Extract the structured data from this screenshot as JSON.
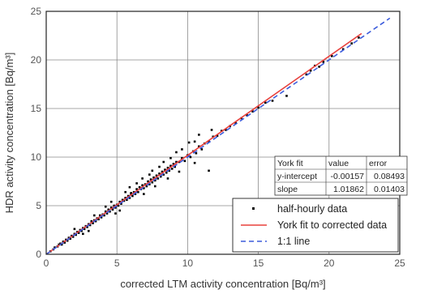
{
  "chart_data": {
    "type": "scatter",
    "xlabel": "corrected LTM activity concentration [Bq/m³]",
    "ylabel": "HDR activity concentration [Bq/m³]",
    "xlim": [
      0,
      25
    ],
    "ylim": [
      0,
      25
    ],
    "x_ticks": [
      "0",
      "5",
      "10",
      "15",
      "20",
      "25"
    ],
    "y_ticks": [
      "0",
      "5",
      "10",
      "15",
      "20",
      "25"
    ],
    "grid": true,
    "series": [
      {
        "name": "half-hourly data",
        "kind": "points",
        "color": "#000000",
        "x": [
          0.3,
          0.5,
          0.6,
          0.8,
          0.9,
          1.0,
          1.1,
          1.2,
          1.3,
          1.4,
          1.5,
          1.6,
          1.7,
          1.8,
          1.9,
          2.0,
          2.1,
          2.2,
          2.3,
          2.4,
          2.5,
          2.6,
          2.7,
          2.8,
          2.9,
          3.0,
          3.1,
          3.2,
          3.3,
          3.4,
          3.5,
          3.6,
          3.7,
          3.8,
          3.9,
          4.0,
          4.1,
          4.2,
          4.3,
          4.4,
          4.5,
          4.6,
          4.7,
          4.8,
          4.9,
          5.0,
          5.1,
          5.2,
          5.3,
          5.4,
          5.5,
          5.6,
          5.7,
          5.8,
          5.9,
          6.0,
          6.1,
          6.2,
          6.3,
          6.4,
          6.5,
          6.6,
          6.7,
          6.8,
          6.9,
          7.0,
          7.1,
          7.2,
          7.3,
          7.4,
          7.5,
          7.6,
          7.7,
          7.8,
          7.9,
          8.0,
          8.1,
          8.2,
          8.3,
          8.4,
          8.5,
          8.6,
          8.7,
          8.8,
          8.9,
          9.0,
          9.1,
          9.2,
          9.4,
          9.6,
          9.8,
          10.0,
          10.2,
          10.4,
          10.6,
          10.8,
          11.0,
          11.2,
          11.5,
          11.8,
          12.1,
          12.4,
          12.7,
          13.0,
          13.4,
          13.8,
          14.2,
          14.6,
          15.0,
          15.5,
          16.0,
          18.4,
          18.7,
          19.0,
          19.3,
          19.6,
          20.2,
          21.0,
          21.6,
          22.1,
          2.0,
          3.4,
          4.2,
          5.6,
          6.4,
          7.3,
          8.0,
          8.8,
          9.6,
          10.5,
          11.7,
          4.6,
          5.9,
          6.8,
          7.5,
          8.3,
          9.2,
          10.1,
          10.8,
          6.0,
          10.5,
          11.5,
          17.0,
          2.6,
          3.0,
          4.9,
          5.2,
          6.9,
          7.7,
          8.6,
          9.4
        ],
        "y": [
          0.3,
          0.5,
          0.7,
          0.8,
          1.0,
          1.1,
          1.0,
          1.3,
          1.2,
          1.5,
          1.4,
          1.7,
          1.6,
          1.9,
          1.8,
          2.1,
          2.0,
          2.3,
          2.2,
          2.5,
          2.4,
          2.7,
          2.6,
          2.9,
          2.8,
          3.1,
          3.0,
          3.4,
          3.2,
          3.5,
          3.4,
          3.7,
          3.6,
          4.0,
          3.8,
          4.1,
          4.0,
          4.4,
          4.2,
          4.6,
          4.4,
          4.8,
          4.6,
          5.0,
          4.8,
          5.1,
          5.0,
          5.4,
          5.2,
          5.6,
          5.5,
          5.8,
          5.6,
          6.0,
          5.8,
          6.2,
          6.0,
          6.4,
          6.2,
          6.7,
          6.4,
          6.9,
          6.7,
          7.1,
          6.8,
          7.2,
          7.0,
          7.5,
          7.2,
          7.7,
          7.4,
          7.9,
          7.6,
          8.1,
          7.8,
          8.3,
          8.0,
          8.5,
          8.2,
          8.7,
          8.4,
          8.9,
          8.6,
          9.1,
          8.8,
          9.3,
          9.0,
          9.5,
          9.5,
          9.9,
          9.6,
          10.2,
          10.0,
          10.6,
          10.4,
          11.1,
          10.8,
          11.4,
          11.6,
          12.1,
          12.2,
          12.7,
          12.8,
          13.2,
          13.5,
          14.0,
          14.3,
          14.7,
          15.1,
          15.6,
          15.8,
          18.5,
          18.9,
          19.4,
          19.3,
          19.8,
          20.4,
          21.1,
          21.7,
          22.3,
          2.6,
          4.0,
          4.9,
          6.4,
          7.3,
          8.2,
          9.0,
          9.9,
          10.8,
          11.6,
          12.8,
          5.4,
          6.9,
          7.8,
          8.6,
          9.5,
          10.5,
          11.5,
          12.3,
          6.3,
          9.4,
          8.6,
          16.3,
          2.1,
          2.4,
          4.2,
          4.5,
          6.2,
          7.0,
          7.8,
          8.5
        ]
      },
      {
        "name": "York fit to corrected data",
        "kind": "line",
        "color": "#e8403c",
        "x": [
          0,
          22.3
        ],
        "y": [
          -0.00157,
          22.72
        ]
      },
      {
        "name": "1:1 line",
        "kind": "dashed-line",
        "color": "#3b5bdb",
        "x": [
          0,
          24.3
        ],
        "y": [
          0,
          24.3
        ]
      }
    ],
    "fit_table": {
      "headers": [
        "York fit",
        "value",
        "error"
      ],
      "rows": [
        [
          "y-intercept",
          "-0.00157",
          "0.08493"
        ],
        [
          "slope",
          "1.01862",
          "0.01403"
        ]
      ]
    },
    "legend": {
      "position": "bottom-right",
      "entries": [
        "half-hourly data",
        "York fit to corrected data",
        "1:1 line"
      ]
    }
  }
}
